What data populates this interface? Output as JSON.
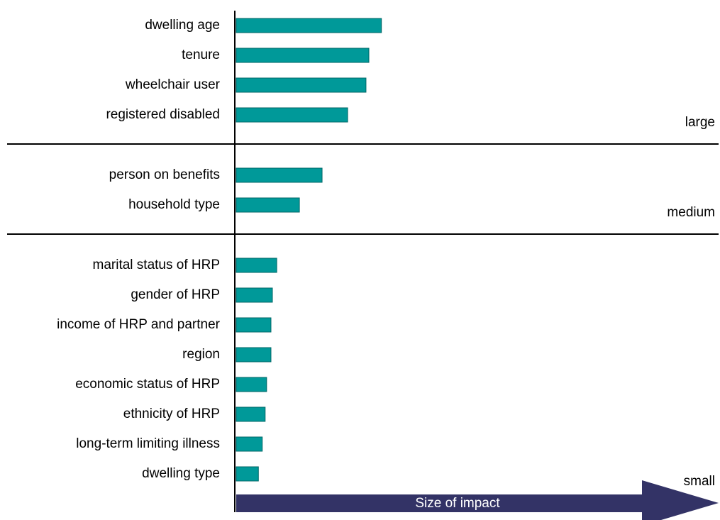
{
  "chart_data": {
    "type": "bar",
    "color": "#009999",
    "xlim": [
      0,
      100
    ],
    "xlabel": "Size of impact",
    "groups": [
      {
        "name": "large",
        "categories": [
          "dwelling age",
          "tenure",
          "wheelchair user",
          "registered disabled"
        ],
        "values": [
          30.1,
          27.5,
          26.9,
          23.1
        ]
      },
      {
        "name": "medium",
        "categories": [
          "person on benefits",
          "household type"
        ],
        "values": [
          17.8,
          13.1
        ]
      },
      {
        "name": "small",
        "categories": [
          "marital status of HRP",
          "gender of HRP",
          "income of HRP and partner",
          "region",
          "economic status of HRP",
          "ethnicity of HRP",
          "long-term limiting illness",
          "dwelling type"
        ],
        "values": [
          8.4,
          7.5,
          7.2,
          7.2,
          6.3,
          6.0,
          5.4,
          4.6
        ]
      }
    ]
  }
}
